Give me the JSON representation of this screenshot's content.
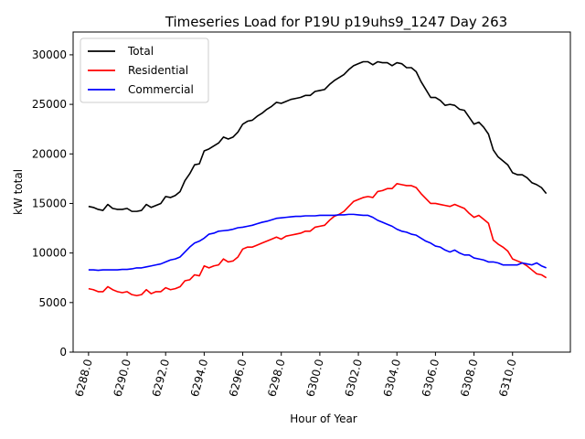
{
  "chart_data": {
    "type": "line",
    "title": "Timeseries Load for P19U p19uhs9_1247  Day 263",
    "xlabel": "Hour of Year",
    "ylabel": "kW total",
    "xlim": [
      6287.2,
      6313.0
    ],
    "ylim": [
      0,
      32300
    ],
    "x_ticks": [
      6288,
      6290,
      6292,
      6294,
      6296,
      6298,
      6300,
      6302,
      6304,
      6306,
      6308,
      6310
    ],
    "x_tick_labels": [
      "6288.0",
      "6290.0",
      "6292.0",
      "6294.0",
      "6296.0",
      "6298.0",
      "6300.0",
      "6302.0",
      "6304.0",
      "6306.0",
      "6308.0",
      "6310.0"
    ],
    "y_ticks": [
      0,
      5000,
      10000,
      15000,
      20000,
      25000,
      30000
    ],
    "y_tick_labels": [
      "0",
      "5000",
      "10000",
      "15000",
      "20000",
      "25000",
      "30000"
    ],
    "legend_position": "top-left",
    "series": [
      {
        "name": "Total",
        "color": "#000000",
        "x": [
          6288.0,
          6288.25,
          6288.5,
          6288.75,
          6289.0,
          6289.25,
          6289.5,
          6289.75,
          6290.0,
          6290.25,
          6290.5,
          6290.75,
          6291.0,
          6291.25,
          6291.5,
          6291.75,
          6292.0,
          6292.25,
          6292.5,
          6292.75,
          6293.0,
          6293.25,
          6293.5,
          6293.75,
          6294.0,
          6294.25,
          6294.5,
          6294.75,
          6295.0,
          6295.25,
          6295.5,
          6295.75,
          6296.0,
          6296.25,
          6296.5,
          6296.75,
          6297.0,
          6297.25,
          6297.5,
          6297.75,
          6298.0,
          6298.25,
          6298.5,
          6298.75,
          6299.0,
          6299.25,
          6299.5,
          6299.75,
          6300.0,
          6300.25,
          6300.5,
          6300.75,
          6301.0,
          6301.25,
          6301.5,
          6301.75,
          6302.0,
          6302.25,
          6302.5,
          6302.75,
          6303.0,
          6303.25,
          6303.5,
          6303.75,
          6304.0,
          6304.25,
          6304.5,
          6304.75,
          6305.0,
          6305.25,
          6305.5,
          6305.75,
          6306.0,
          6306.25,
          6306.5,
          6306.75,
          6307.0,
          6307.25,
          6307.5,
          6307.75,
          6308.0,
          6308.25,
          6308.5,
          6308.75,
          6309.0,
          6309.25,
          6309.5,
          6309.75,
          6310.0,
          6310.25,
          6310.5,
          6310.75,
          6311.0,
          6311.25,
          6311.5,
          6311.75
        ],
        "values": [
          14700,
          14600,
          14400,
          14300,
          14900,
          14500,
          14400,
          14400,
          14500,
          14200,
          14200,
          14300,
          14900,
          14600,
          14800,
          15000,
          15700,
          15600,
          15800,
          16200,
          17300,
          18000,
          18900,
          19000,
          20300,
          20500,
          20800,
          21100,
          21700,
          21500,
          21700,
          22200,
          23000,
          23300,
          23400,
          23800,
          24100,
          24500,
          24800,
          25200,
          25100,
          25300,
          25500,
          25600,
          25700,
          25900,
          25900,
          26300,
          26400,
          26500,
          27000,
          27400,
          27700,
          28000,
          28500,
          28900,
          29100,
          29300,
          29300,
          29000,
          29300,
          29200,
          29200,
          28900,
          29200,
          29100,
          28700,
          28700,
          28300,
          27300,
          26500,
          25700,
          25700,
          25400,
          24900,
          25000,
          24900,
          24500,
          24400,
          23700,
          23000,
          23200,
          22700,
          22000,
          20400,
          19700,
          19300,
          18900,
          18100,
          17900,
          17900,
          17600,
          17100,
          16900,
          16600,
          16000
        ]
      },
      {
        "name": "Residential",
        "color": "#ff0000",
        "x": [
          6288.0,
          6288.25,
          6288.5,
          6288.75,
          6289.0,
          6289.25,
          6289.5,
          6289.75,
          6290.0,
          6290.25,
          6290.5,
          6290.75,
          6291.0,
          6291.25,
          6291.5,
          6291.75,
          6292.0,
          6292.25,
          6292.5,
          6292.75,
          6293.0,
          6293.25,
          6293.5,
          6293.75,
          6294.0,
          6294.25,
          6294.5,
          6294.75,
          6295.0,
          6295.25,
          6295.5,
          6295.75,
          6296.0,
          6296.25,
          6296.5,
          6296.75,
          6297.0,
          6297.25,
          6297.5,
          6297.75,
          6298.0,
          6298.25,
          6298.5,
          6298.75,
          6299.0,
          6299.25,
          6299.5,
          6299.75,
          6300.0,
          6300.25,
          6300.5,
          6300.75,
          6301.0,
          6301.25,
          6301.5,
          6301.75,
          6302.0,
          6302.25,
          6302.5,
          6302.75,
          6303.0,
          6303.25,
          6303.5,
          6303.75,
          6304.0,
          6304.25,
          6304.5,
          6304.75,
          6305.0,
          6305.25,
          6305.5,
          6305.75,
          6306.0,
          6306.25,
          6306.5,
          6306.75,
          6307.0,
          6307.25,
          6307.5,
          6307.75,
          6308.0,
          6308.25,
          6308.5,
          6308.75,
          6309.0,
          6309.25,
          6309.5,
          6309.75,
          6310.0,
          6310.25,
          6310.5,
          6310.75,
          6311.0,
          6311.25,
          6311.5,
          6311.75
        ],
        "values": [
          6400,
          6300,
          6100,
          6100,
          6600,
          6300,
          6100,
          6000,
          6100,
          5800,
          5700,
          5800,
          6300,
          5900,
          6100,
          6100,
          6500,
          6300,
          6400,
          6600,
          7200,
          7300,
          7800,
          7700,
          8700,
          8500,
          8700,
          8800,
          9400,
          9100,
          9200,
          9600,
          10400,
          10600,
          10600,
          10800,
          11000,
          11200,
          11400,
          11600,
          11400,
          11700,
          11800,
          11900,
          12000,
          12200,
          12200,
          12600,
          12700,
          12800,
          13300,
          13700,
          13900,
          14200,
          14700,
          15200,
          15400,
          15600,
          15700,
          15600,
          16200,
          16300,
          16500,
          16500,
          17000,
          16900,
          16800,
          16800,
          16600,
          16000,
          15500,
          15000,
          15000,
          14900,
          14800,
          14700,
          14900,
          14700,
          14500,
          14000,
          13600,
          13800,
          13400,
          13000,
          11300,
          10900,
          10600,
          10200,
          9400,
          9200,
          9000,
          8700,
          8300,
          7900,
          7800,
          7500
        ]
      },
      {
        "name": "Commercial",
        "color": "#0000ff",
        "x": [
          6288.0,
          6288.25,
          6288.5,
          6288.75,
          6289.0,
          6289.25,
          6289.5,
          6289.75,
          6290.0,
          6290.25,
          6290.5,
          6290.75,
          6291.0,
          6291.25,
          6291.5,
          6291.75,
          6292.0,
          6292.25,
          6292.5,
          6292.75,
          6293.0,
          6293.25,
          6293.5,
          6293.75,
          6294.0,
          6294.25,
          6294.5,
          6294.75,
          6295.0,
          6295.25,
          6295.5,
          6295.75,
          6296.0,
          6296.25,
          6296.5,
          6296.75,
          6297.0,
          6297.25,
          6297.5,
          6297.75,
          6298.0,
          6298.25,
          6298.5,
          6298.75,
          6299.0,
          6299.25,
          6299.5,
          6299.75,
          6300.0,
          6300.25,
          6300.5,
          6300.75,
          6301.0,
          6301.25,
          6301.5,
          6301.75,
          6302.0,
          6302.25,
          6302.5,
          6302.75,
          6303.0,
          6303.25,
          6303.5,
          6303.75,
          6304.0,
          6304.25,
          6304.5,
          6304.75,
          6305.0,
          6305.25,
          6305.5,
          6305.75,
          6306.0,
          6306.25,
          6306.5,
          6306.75,
          6307.0,
          6307.25,
          6307.5,
          6307.75,
          6308.0,
          6308.25,
          6308.5,
          6308.75,
          6309.0,
          6309.25,
          6309.5,
          6309.75,
          6310.0,
          6310.25,
          6310.5,
          6310.75,
          6311.0,
          6311.25,
          6311.5,
          6311.75
        ],
        "values": [
          8300,
          8300,
          8250,
          8300,
          8300,
          8300,
          8300,
          8350,
          8350,
          8400,
          8500,
          8500,
          8600,
          8700,
          8800,
          8900,
          9100,
          9300,
          9400,
          9600,
          10100,
          10600,
          11000,
          11200,
          11500,
          11900,
          12000,
          12200,
          12250,
          12300,
          12400,
          12550,
          12600,
          12700,
          12800,
          12950,
          13100,
          13200,
          13350,
          13500,
          13550,
          13600,
          13650,
          13700,
          13700,
          13750,
          13750,
          13750,
          13800,
          13800,
          13800,
          13800,
          13850,
          13850,
          13900,
          13900,
          13850,
          13800,
          13800,
          13600,
          13300,
          13100,
          12900,
          12700,
          12400,
          12200,
          12100,
          11900,
          11800,
          11500,
          11200,
          11000,
          10700,
          10600,
          10300,
          10100,
          10300,
          10000,
          9800,
          9800,
          9500,
          9400,
          9300,
          9100,
          9100,
          9000,
          8800,
          8800,
          8800,
          8800,
          9000,
          8900,
          8800,
          9000,
          8700,
          8500
        ]
      }
    ]
  }
}
